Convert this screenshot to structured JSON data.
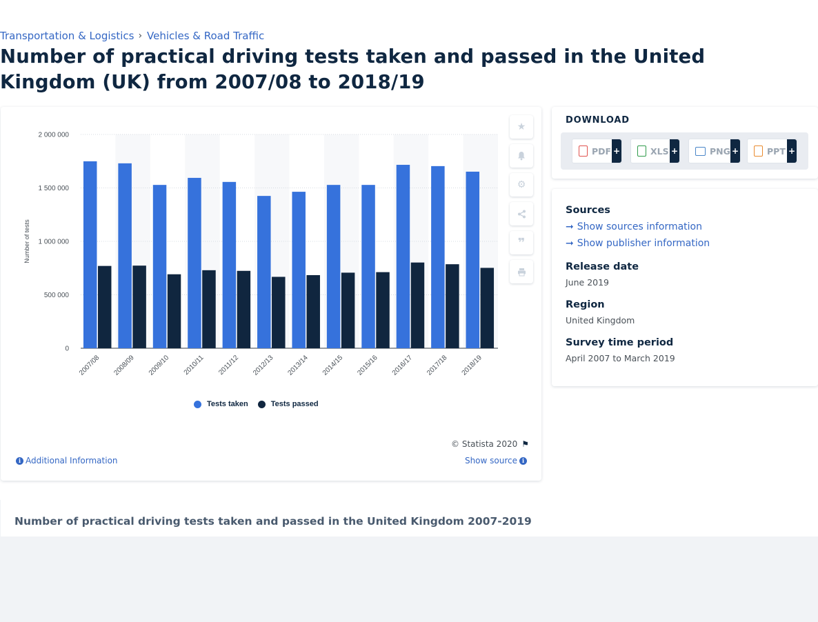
{
  "breadcrumb": {
    "items": [
      "Transportation & Logistics",
      "Vehicles & Road Traffic"
    ],
    "separator": "›"
  },
  "page": {
    "title": "Number of practical driving tests taken and passed in the United Kingdom (UK) from 2007/08 to 2018/19"
  },
  "tools": {
    "icons": [
      "star-icon",
      "bell-icon",
      "gear-icon",
      "share-icon",
      "quote-icon",
      "print-icon"
    ]
  },
  "chart_data": {
    "type": "bar",
    "title": "",
    "xlabel": "",
    "ylabel": "Number of tests",
    "ylim": [
      0,
      2000000
    ],
    "yticks": [
      0,
      500000,
      1000000,
      1500000,
      2000000
    ],
    "ytick_labels": [
      "0",
      "500 000",
      "1 000 000",
      "1 500 000",
      "2 000 000"
    ],
    "categories": [
      "2007/08",
      "2008/09",
      "2009/10",
      "2010/11",
      "2011/12",
      "2012/13",
      "2013/14",
      "2014/15",
      "2015/16",
      "2016/17",
      "2017/18",
      "2018/19"
    ],
    "series": [
      {
        "name": "Tests taken",
        "color": "#3672dc",
        "values": [
          1749000,
          1730000,
          1528000,
          1594000,
          1556000,
          1425000,
          1464000,
          1528000,
          1528000,
          1716000,
          1704000,
          1652000
        ]
      },
      {
        "name": "Tests passed",
        "color": "#10263f",
        "values": [
          770000,
          773000,
          692000,
          730000,
          724000,
          668000,
          684000,
          707000,
          712000,
          802000,
          786000,
          752000
        ]
      }
    ],
    "grid": true,
    "legend_position": "bottom"
  },
  "chart_footer": {
    "copyright": "© Statista 2020",
    "additional_info": "Additional Information",
    "show_source": "Show source"
  },
  "download": {
    "title": "DOWNLOAD",
    "buttons": [
      {
        "label": "PDF",
        "color": "#e0514d"
      },
      {
        "label": "XLS",
        "color": "#2f9a4a"
      },
      {
        "label": "PNG",
        "color": "#4a86c8"
      },
      {
        "label": "PPT",
        "color": "#e98a2e"
      }
    ],
    "plus": "+"
  },
  "meta": {
    "sources_label": "Sources",
    "show_sources": "Show sources information",
    "show_publisher": "Show publisher information",
    "release_label": "Release date",
    "release_value": "June 2019",
    "region_label": "Region",
    "region_value": "United Kingdom",
    "survey_label": "Survey time period",
    "survey_value": "April 2007 to March 2019"
  },
  "bottom": {
    "title": "Number of practical driving tests taken and passed in the United Kingdom 2007-2019"
  }
}
